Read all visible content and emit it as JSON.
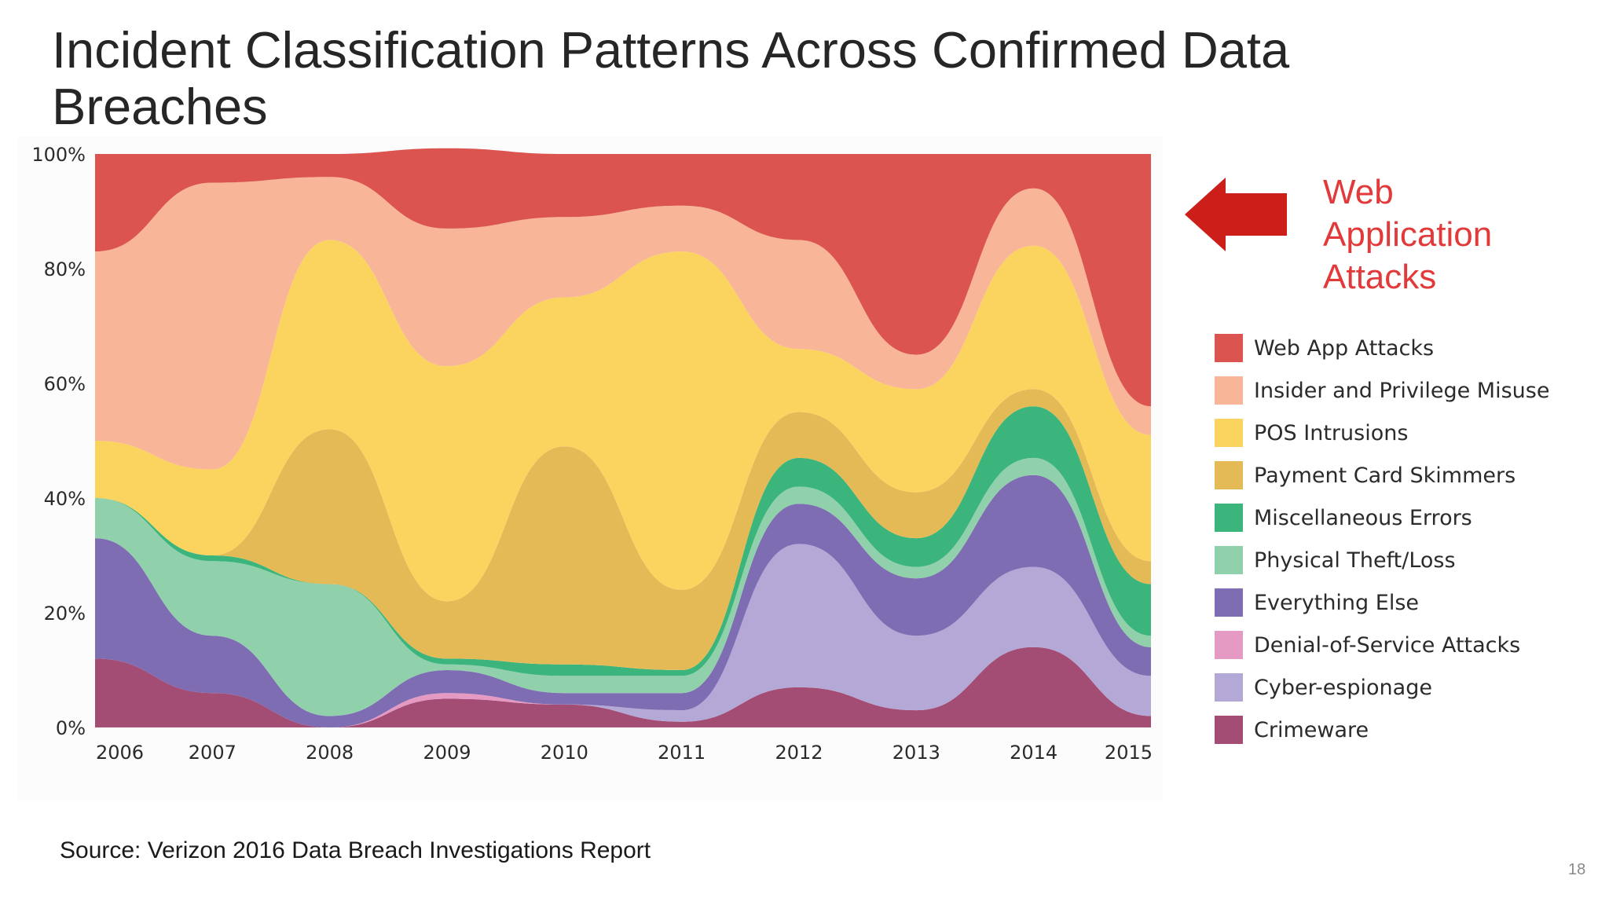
{
  "slide": {
    "title": "Incident Classification Patterns Across Confirmed Data Breaches",
    "source": "Source: Verizon 2016 Data Breach Investigations Report",
    "page_number": "18"
  },
  "callout": {
    "lines": [
      "Web",
      "Application",
      "Attacks"
    ],
    "color": "#e23a3a",
    "arrow_color": "#cc1f1a",
    "arrow_icon": "left-arrow-icon"
  },
  "chart_data": {
    "type": "area",
    "stacked": true,
    "normalized_to_percent": true,
    "x": [
      "2006",
      "2007",
      "2008",
      "2009",
      "2010",
      "2011",
      "2012",
      "2013",
      "2014",
      "2015"
    ],
    "y_ticks": [
      "0%",
      "20%",
      "40%",
      "60%",
      "80%",
      "100%"
    ],
    "ylim": [
      0,
      100
    ],
    "title": "",
    "xlabel": "",
    "ylabel": "",
    "grid": false,
    "legend_position": "right",
    "series": [
      {
        "name": "Crimeware",
        "color": "#a34c74",
        "values": [
          12,
          6,
          0,
          5,
          4,
          1,
          7,
          3,
          14,
          2
        ]
      },
      {
        "name": "Cyber-espionage",
        "color": "#b4a8d6",
        "values": [
          0,
          0,
          0,
          0,
          0,
          2,
          25,
          13,
          14,
          7
        ]
      },
      {
        "name": "Denial-of-Service Attacks",
        "color": "#e59ac3",
        "values": [
          0,
          0,
          0,
          1,
          0,
          0,
          0,
          0,
          0,
          0
        ]
      },
      {
        "name": "Everything Else",
        "color": "#7f6db3",
        "values": [
          21,
          10,
          2,
          4,
          2,
          3,
          7,
          10,
          16,
          5
        ]
      },
      {
        "name": "Physical Theft/Loss",
        "color": "#90d0aa",
        "values": [
          7,
          13,
          23,
          1,
          3,
          3,
          3,
          2,
          3,
          2
        ]
      },
      {
        "name": "Miscellaneous Errors",
        "color": "#3bb57b",
        "values": [
          0,
          1,
          0,
          1,
          2,
          1,
          5,
          5,
          9,
          9
        ]
      },
      {
        "name": "Payment Card Skimmers",
        "color": "#e4ba57",
        "values": [
          0,
          0,
          27,
          10,
          38,
          14,
          8,
          8,
          3,
          4
        ]
      },
      {
        "name": "POS Intrusions",
        "color": "#fbd45f",
        "values": [
          10,
          15,
          33,
          41,
          26,
          59,
          11,
          18,
          25,
          22
        ]
      },
      {
        "name": "Insider and Privilege Misuse",
        "color": "#f8b598",
        "values": [
          33,
          50,
          11,
          24,
          14,
          8,
          19,
          6,
          10,
          5
        ]
      },
      {
        "name": "Web App Attacks",
        "color": "#dc544f",
        "values": [
          17,
          5,
          4,
          14,
          11,
          9,
          15,
          35,
          6,
          44
        ]
      }
    ]
  },
  "legend": {
    "order": [
      "Web App Attacks",
      "Insider and Privilege Misuse",
      "POS Intrusions",
      "Payment Card Skimmers",
      "Miscellaneous Errors",
      "Physical Theft/Loss",
      "Everything Else",
      "Denial-of-Service Attacks",
      "Cyber-espionage",
      "Crimeware"
    ]
  }
}
